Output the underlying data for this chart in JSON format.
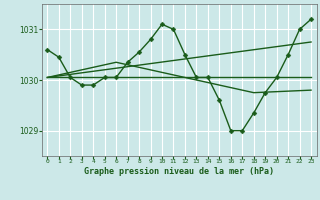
{
  "bg_color": "#cce8e8",
  "grid_color": "#ffffff",
  "line_color": "#1a5c1a",
  "xlabel": "Graphe pression niveau de la mer (hPa)",
  "ylim": [
    1028.5,
    1031.5
  ],
  "xlim": [
    -0.5,
    23.5
  ],
  "yticks": [
    1029,
    1030,
    1031
  ],
  "xticks": [
    0,
    1,
    2,
    3,
    4,
    5,
    6,
    7,
    8,
    9,
    10,
    11,
    12,
    13,
    14,
    15,
    16,
    17,
    18,
    19,
    20,
    21,
    22,
    23
  ],
  "series": [
    {
      "x": [
        0,
        1,
        2,
        3,
        4,
        5,
        6,
        7,
        8,
        9,
        10,
        11,
        12,
        13,
        14,
        15,
        16,
        17,
        18,
        19,
        20,
        21,
        22,
        23
      ],
      "y": [
        1030.6,
        1030.45,
        1030.05,
        1029.9,
        1029.9,
        1030.05,
        1030.05,
        1030.35,
        1030.55,
        1030.8,
        1031.1,
        1031.0,
        1030.5,
        1030.05,
        1030.05,
        1029.6,
        1029.0,
        1029.0,
        1029.35,
        1029.75,
        1030.05,
        1030.5,
        1031.0,
        1031.2
      ],
      "marker": "D",
      "markersize": 2.5,
      "linewidth": 1.0,
      "has_marker": true
    },
    {
      "x": [
        0,
        23
      ],
      "y": [
        1030.05,
        1030.05
      ],
      "marker": null,
      "markersize": 0,
      "linewidth": 1.0,
      "has_marker": false
    },
    {
      "x": [
        0,
        23
      ],
      "y": [
        1030.05,
        1030.75
      ],
      "marker": null,
      "markersize": 0,
      "linewidth": 1.0,
      "has_marker": false
    },
    {
      "x": [
        0,
        6,
        12,
        18,
        23
      ],
      "y": [
        1030.05,
        1030.35,
        1030.05,
        1029.75,
        1029.8
      ],
      "marker": null,
      "markersize": 0,
      "linewidth": 1.0,
      "has_marker": false
    }
  ]
}
